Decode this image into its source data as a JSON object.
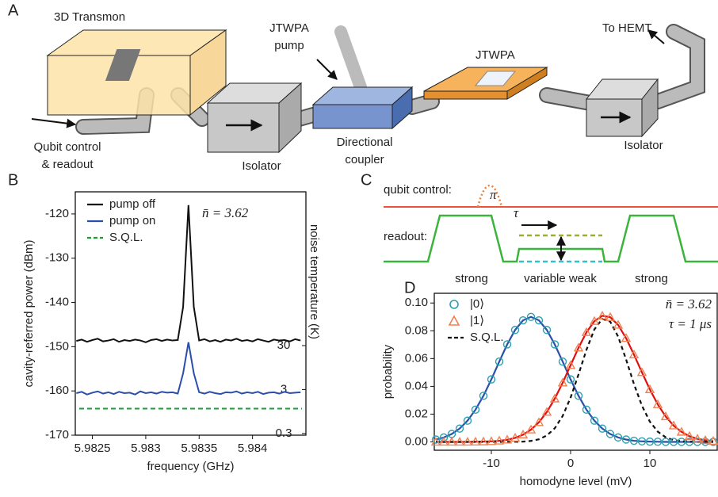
{
  "panels": [
    "A",
    "B",
    "C",
    "D"
  ],
  "diagram_a": {
    "transmon": "3D Transmon",
    "pump": [
      "JTWPA",
      "pump"
    ],
    "jtwpa": "JTWPA",
    "hemt": "To HEMT",
    "input": [
      "Qubit control",
      "& readout"
    ],
    "isolator_1": "Isolator",
    "coupler": [
      "Directional",
      "coupler"
    ],
    "isolator_2": "Isolator"
  },
  "diagram_c": {
    "qubit_control": "qubit control:",
    "pi": "π",
    "tau": "τ",
    "readout": "readout:",
    "strong_1": "strong",
    "variable_weak": "variable weak",
    "strong_2": "strong"
  },
  "chart_data": [
    {
      "type": "line",
      "xlabel": "frequency (GHz)",
      "ylabel": "cavity-referred power (dBm)",
      "y2label": "noise temperature (K)",
      "annotations": [
        "n̄ = 3.62"
      ],
      "x": [
        5.98235,
        5.9824,
        5.98245,
        5.9825,
        5.98255,
        5.9826,
        5.98265,
        5.9827,
        5.98275,
        5.9828,
        5.98285,
        5.9829,
        5.98295,
        5.983,
        5.98305,
        5.9831,
        5.98315,
        5.9832,
        5.98325,
        5.9833,
        5.98335,
        5.9834,
        5.98345,
        5.9835,
        5.98355,
        5.9836,
        5.98365,
        5.9837,
        5.98375,
        5.9838,
        5.98385,
        5.9839,
        5.98395,
        5.984,
        5.98405,
        5.9841,
        5.98415,
        5.9842,
        5.98425,
        5.9843,
        5.98435,
        5.9844,
        5.98445
      ],
      "series": [
        {
          "name": "pump off",
          "color": "#111111",
          "values": [
            -148.7,
            -148.4,
            -148.9,
            -148.5,
            -148.2,
            -148.8,
            -148.6,
            -148.3,
            -148.9,
            -148.5,
            -148.7,
            -148.4,
            -148.6,
            -149.0,
            -148.5,
            -148.3,
            -148.7,
            -148.4,
            -148.6,
            -148.5,
            -141,
            -118,
            -141,
            -148.6,
            -148.3,
            -148.8,
            -148.5,
            -148.9,
            -148.4,
            -148.6,
            -148.2,
            -148.7,
            -148.5,
            -148.8,
            -148.3,
            -148.6,
            -148.9,
            -148.4,
            -148.6,
            -148.5,
            -148.8,
            -148.3,
            -148.6
          ]
        },
        {
          "name": "pump on",
          "color": "#2b4fa8",
          "values": [
            -160.5,
            -160.2,
            -160.8,
            -160.4,
            -160.1,
            -160.6,
            -160.3,
            -160.7,
            -160.2,
            -160.5,
            -160.4,
            -160.8,
            -160.1,
            -160.5,
            -160.3,
            -160.6,
            -160.2,
            -160.4,
            -160.3,
            -160.6,
            -156,
            -149,
            -156,
            -160.3,
            -160.6,
            -160.2,
            -160.5,
            -160.7,
            -160.3,
            -160.4,
            -160.1,
            -160.6,
            -160.3,
            -160.5,
            -160.2,
            -160.7,
            -160.4,
            -160.3,
            -160.6,
            -160.2,
            -160.5,
            -160.4,
            -160.3
          ]
        }
      ],
      "hlines": [
        {
          "name": "S.Q.L.",
          "color": "#1a9e3a",
          "value": -164
        }
      ],
      "xlim": [
        5.98234,
        5.9845
      ],
      "xticks": [
        5.9825,
        5.983,
        5.9835,
        5.984
      ],
      "ylim": [
        -170,
        -115
      ],
      "yticks": [
        -120,
        -130,
        -140,
        -150,
        -160,
        -170
      ],
      "y2lim": [
        0.274,
        94868
      ],
      "y2log": true,
      "y2ticks": [
        30,
        3,
        0.3
      ]
    },
    {
      "type": "scatter",
      "xlabel": "homodyne level (mV)",
      "ylabel": "probability",
      "annotations": [
        "n̄ = 3.62",
        "τ = 1 μs"
      ],
      "x": [
        -17,
        -16,
        -15,
        -14,
        -13,
        -12,
        -11,
        -10,
        -9,
        -8,
        -7,
        -6,
        -5,
        -4,
        -3,
        -2,
        -1,
        0,
        1,
        2,
        3,
        4,
        5,
        6,
        7,
        8,
        9,
        10,
        11,
        12,
        13,
        14,
        15,
        16,
        17,
        18
      ],
      "series": [
        {
          "name": "|0⟩",
          "color": "#2aa0b0",
          "marker": "circle",
          "fit_color": "#2b4fa8",
          "values": [
            0.0017,
            0.0032,
            0.0057,
            0.0096,
            0.0153,
            0.0232,
            0.0332,
            0.045,
            0.0578,
            0.0702,
            0.0806,
            0.0875,
            0.09,
            0.0875,
            0.0806,
            0.0702,
            0.0578,
            0.045,
            0.0332,
            0.0232,
            0.0153,
            0.0096,
            0.0057,
            0.0032,
            0.0017,
            0.0008,
            0.0004,
            0.0002,
            0.0001,
            0,
            0,
            0,
            0,
            0,
            0,
            0
          ]
        },
        {
          "name": "|1⟩",
          "color": "#f08050",
          "marker": "triangle",
          "fit_color": "#e01010",
          "values": [
            0,
            0,
            0,
            0,
            0,
            0.0001,
            0.0002,
            0.0004,
            0.0008,
            0.0015,
            0.0029,
            0.0052,
            0.0088,
            0.0141,
            0.0215,
            0.0311,
            0.0426,
            0.0552,
            0.0678,
            0.0789,
            0.0869,
            0.0908,
            0.0898,
            0.0842,
            0.0747,
            0.0628,
            0.0501,
            0.0378,
            0.027,
            0.0183,
            0.0117,
            0.0072,
            0.0041,
            0.0022,
            0.0012,
            0.0006
          ]
        },
        {
          "name": "S.Q.L.",
          "color": "#111111",
          "dash": true,
          "values": [
            0,
            0,
            0,
            0,
            0,
            0,
            0,
            0,
            0,
            0,
            0.0001,
            0.0002,
            0.0007,
            0.0019,
            0.0046,
            0.0098,
            0.0187,
            0.0319,
            0.0486,
            0.0663,
            0.081,
            0.0886,
            0.0866,
            0.0758,
            0.0594,
            0.0416,
            0.0261,
            0.0146,
            0.0074,
            0.0033,
            0.0013,
            0.0005,
            0.0002,
            0,
            0,
            0
          ]
        }
      ],
      "xlim": [
        -17.2,
        18.5
      ],
      "xticks": [
        -10,
        0,
        10
      ],
      "ylim": [
        -0.006,
        0.107
      ],
      "yticks": [
        {
          "value": 0,
          "label": "0.00"
        },
        0.02,
        0.04,
        0.06,
        0.08,
        {
          "value": 0.1,
          "label": "0.10"
        }
      ]
    }
  ]
}
